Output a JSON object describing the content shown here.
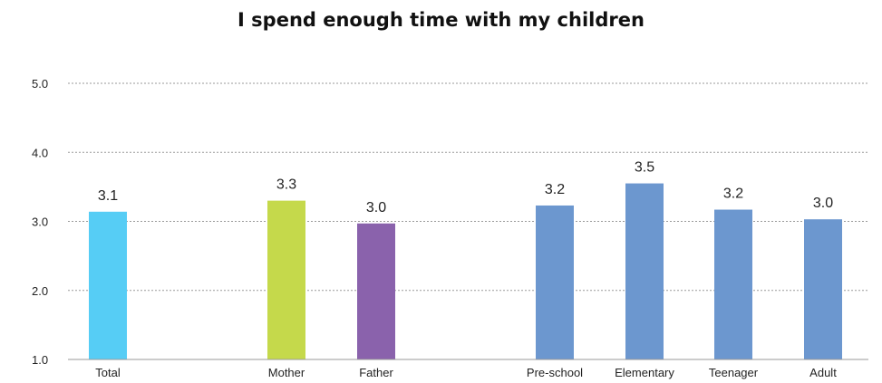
{
  "chart_data": {
    "type": "bar",
    "title": "I spend enough time with my children",
    "xlabel": "",
    "ylabel": "",
    "ylim": [
      1.0,
      5.0
    ],
    "yticks": [
      "1.0",
      "2.0",
      "3.0",
      "4.0",
      "5.0"
    ],
    "grid": true,
    "categories": [
      "Total",
      "Mother",
      "Father",
      "Pre-school",
      "Elementary",
      "Teenager",
      "Adult"
    ],
    "values": [
      3.14,
      3.3,
      2.97,
      3.23,
      3.55,
      3.17,
      3.03
    ],
    "value_labels": [
      "3.1",
      "3.3",
      "3.0",
      "3.2",
      "3.5",
      "3.2",
      "3.0"
    ],
    "colors": [
      "#56cdf5",
      "#c5d94b",
      "#8a62ac",
      "#6c97cf",
      "#6c97cf",
      "#6c97cf",
      "#6c97cf"
    ],
    "gridline_color": "#9a9a9a",
    "axis_color": "#9a9a9a"
  }
}
